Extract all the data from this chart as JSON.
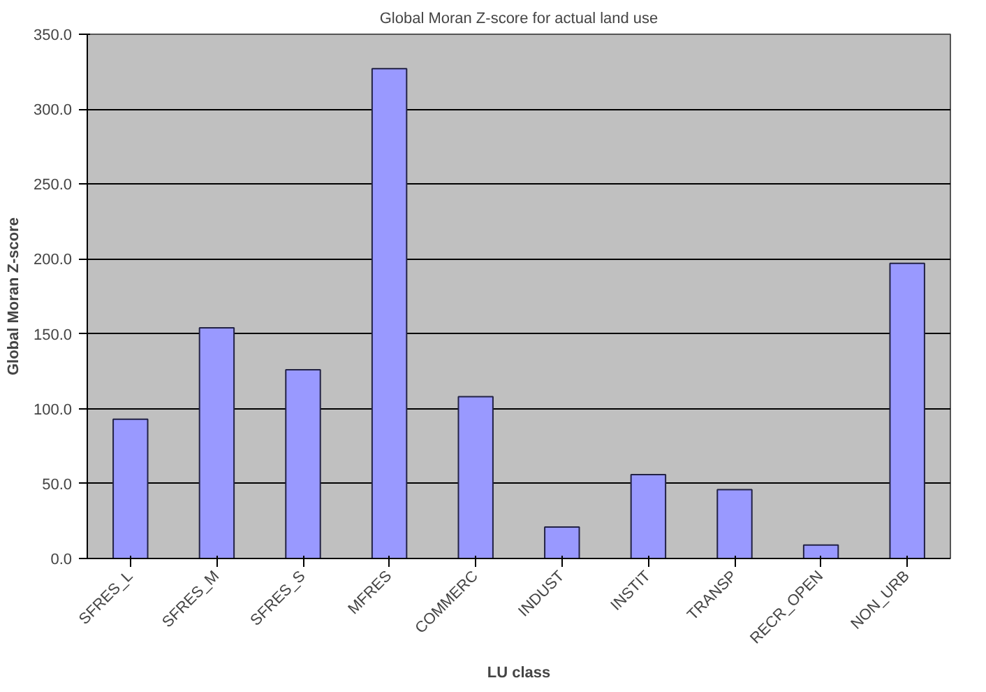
{
  "chart_data": {
    "type": "bar",
    "title": "Global Moran Z-score for actual land use",
    "xlabel": "LU class",
    "ylabel": "Global Moran Z-score",
    "categories": [
      "SFRES_L",
      "SFRES_M",
      "SFRES_S",
      "MFRES",
      "COMMERC",
      "INDUST",
      "INSTIT",
      "TRANSP",
      "RECR_OPEN",
      "NON_URB"
    ],
    "values": [
      93,
      154,
      126,
      327,
      108,
      21,
      56,
      46,
      9,
      197
    ],
    "color": "#9999ff",
    "ylim": [
      0,
      350
    ],
    "yticks": [
      {
        "value": 0,
        "label": "0.0"
      },
      {
        "value": 50,
        "label": "50.0"
      },
      {
        "value": 100,
        "label": "100.0"
      },
      {
        "value": 150,
        "label": "150.0"
      },
      {
        "value": 200,
        "label": "200.0"
      },
      {
        "value": 250,
        "label": "250.0"
      },
      {
        "value": 300,
        "label": "300.0"
      },
      {
        "value": 350,
        "label": "350.0"
      }
    ],
    "grid": "y"
  }
}
